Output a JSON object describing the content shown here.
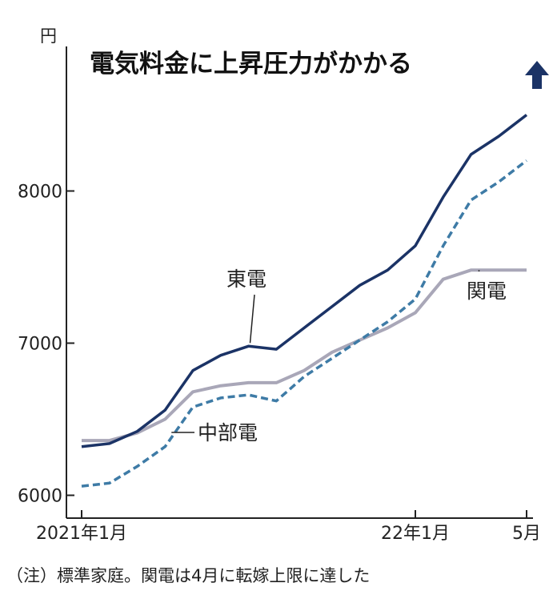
{
  "chart_data": {
    "type": "line",
    "title": "電気料金に上昇圧力がかかる",
    "y_unit": "円",
    "ylim": [
      5850,
      8950
    ],
    "y_ticks": [
      6000,
      7000,
      8000
    ],
    "x": [
      "2021-01",
      "2021-02",
      "2021-03",
      "2021-04",
      "2021-05",
      "2021-06",
      "2021-07",
      "2021-08",
      "2021-09",
      "2021-10",
      "2021-11",
      "2021-12",
      "2022-01",
      "2022-02",
      "2022-03",
      "2022-04",
      "2022-05"
    ],
    "x_tick_labels": [
      {
        "x": "2021-01",
        "label": "2021年1月"
      },
      {
        "x": "2022-01",
        "label": "22年1月"
      },
      {
        "x": "2022-05",
        "label": "5月"
      }
    ],
    "grid": false,
    "series": [
      {
        "name": "東電",
        "color": "#1b3366",
        "style": "solid",
        "values": [
          6320,
          6340,
          6420,
          6560,
          6820,
          6920,
          6980,
          6960,
          7100,
          7240,
          7380,
          7480,
          7640,
          7960,
          8240,
          8360,
          8500
        ]
      },
      {
        "name": "中部電",
        "color": "#3e7ba6",
        "style": "dashed",
        "values": [
          6060,
          6080,
          6190,
          6320,
          6580,
          6640,
          6660,
          6620,
          6780,
          6900,
          7020,
          7140,
          7290,
          7640,
          7940,
          8060,
          8200
        ]
      },
      {
        "name": "関電",
        "color": "#a9a7b8",
        "style": "solid",
        "values": [
          6360,
          6360,
          6410,
          6500,
          6680,
          6720,
          6740,
          6740,
          6820,
          6940,
          7020,
          7100,
          7200,
          7420,
          7480,
          7480,
          7480
        ]
      }
    ],
    "annotations": {
      "up_arrow": {
        "x": "2022-05",
        "color": "#1b3366"
      }
    },
    "note": "（注）標準家庭。関電は4月に転嫁上限に達した"
  }
}
